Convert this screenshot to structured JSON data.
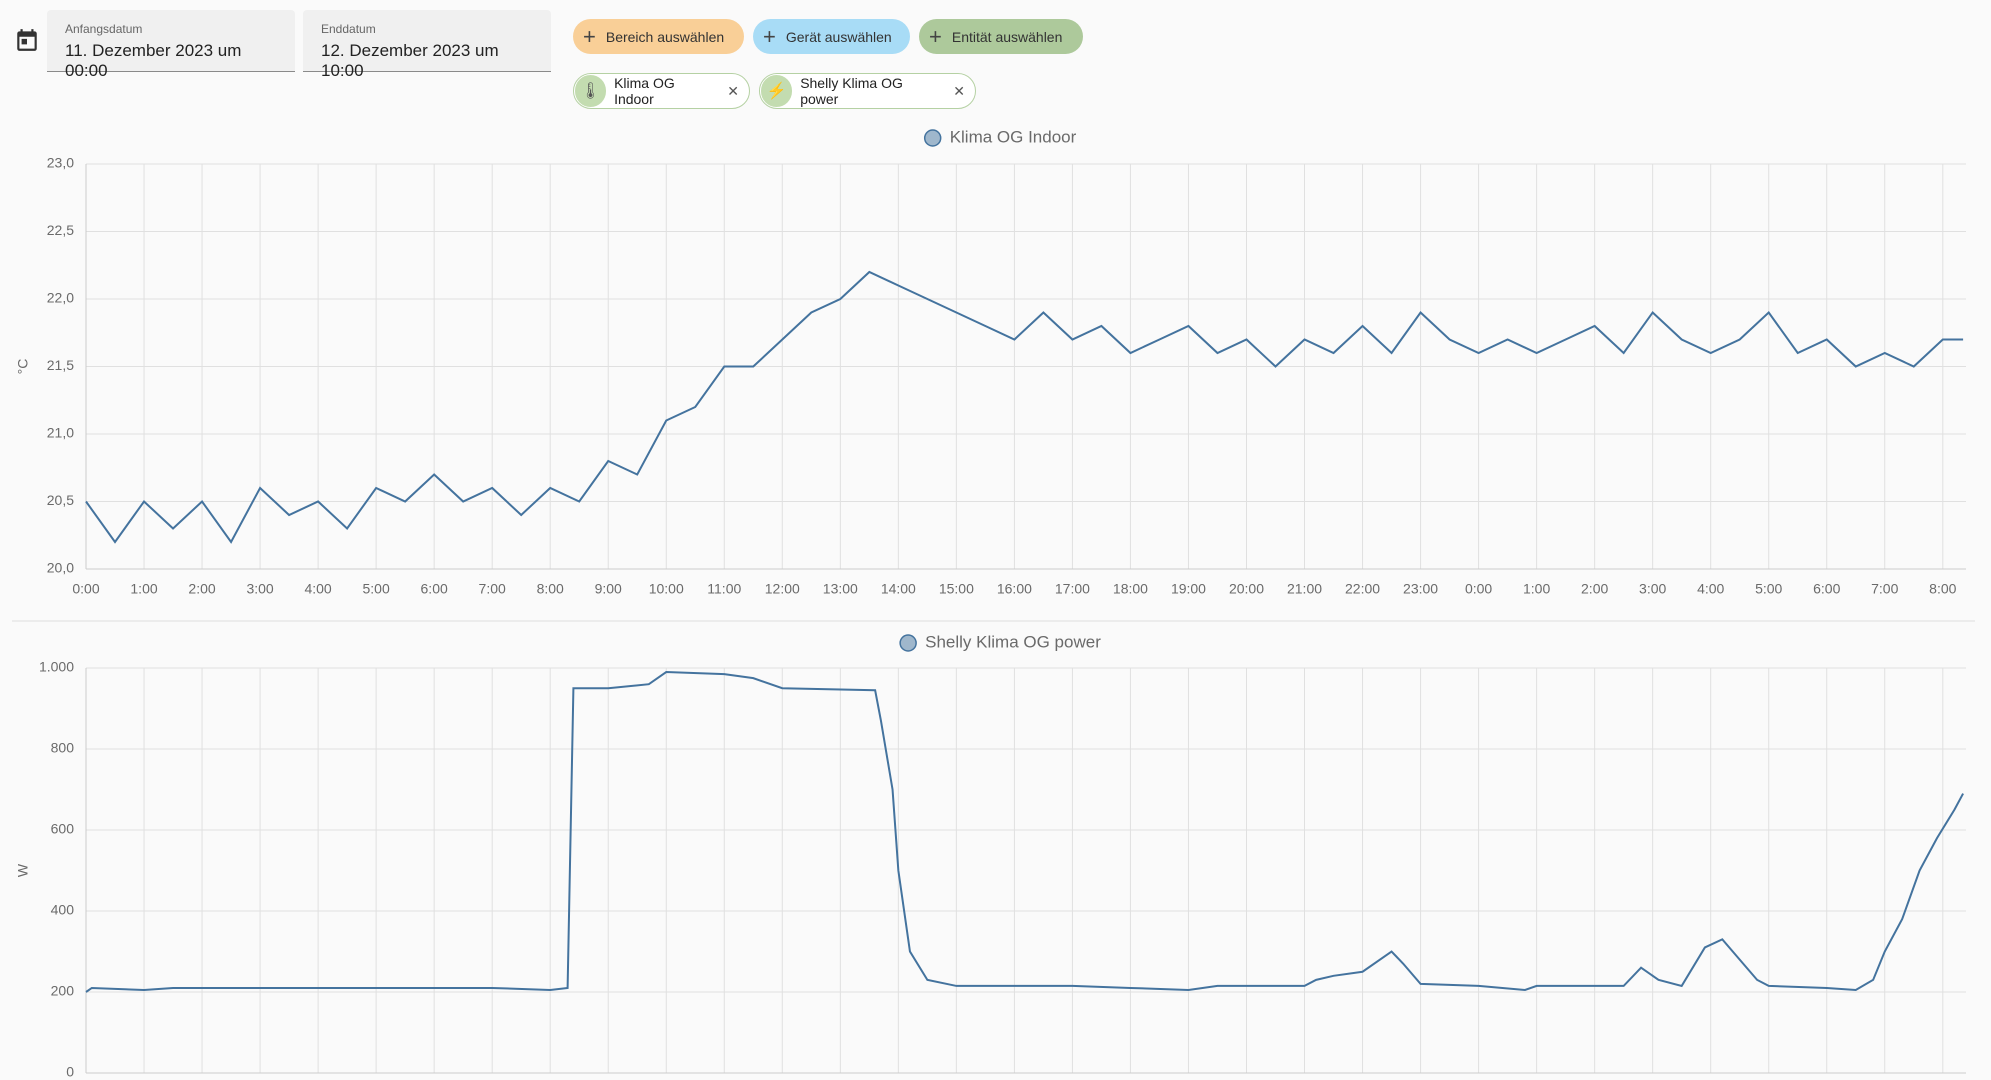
{
  "header": {
    "start_label": "Anfangsdatum",
    "start_value": "11. Dezember 2023 um 00:00",
    "end_label": "Enddatum",
    "end_value": "12. Dezember 2023 um 10:00",
    "buttons": [
      "Bereich auswählen",
      "Gerät auswählen",
      "Entität auswählen"
    ],
    "chips": [
      "Klima OG Indoor",
      "Shelly Klima OG power"
    ]
  },
  "chart_data": [
    {
      "type": "line",
      "ylabel": "°C",
      "grid": true,
      "xlim": [
        0,
        32.4
      ],
      "ylim": [
        20,
        23
      ],
      "yticks": [
        {
          "value": 20,
          "label": "20,0"
        },
        {
          "value": 20.5,
          "label": "20,5"
        },
        {
          "value": 21,
          "label": "21,0"
        },
        {
          "value": 21.5,
          "label": "21,5"
        },
        {
          "value": 22,
          "label": "22,0"
        },
        {
          "value": 22.5,
          "label": "22,5"
        },
        {
          "value": 23,
          "label": "23,0"
        }
      ],
      "xticks": [
        {
          "value": 0,
          "label": "0:00"
        },
        {
          "value": 1,
          "label": "1:00"
        },
        {
          "value": 2,
          "label": "2:00"
        },
        {
          "value": 3,
          "label": "3:00"
        },
        {
          "value": 4,
          "label": "4:00"
        },
        {
          "value": 5,
          "label": "5:00"
        },
        {
          "value": 6,
          "label": "6:00"
        },
        {
          "value": 7,
          "label": "7:00"
        },
        {
          "value": 8,
          "label": "8:00"
        },
        {
          "value": 9,
          "label": "9:00"
        },
        {
          "value": 10,
          "label": "10:00"
        },
        {
          "value": 11,
          "label": "11:00"
        },
        {
          "value": 12,
          "label": "12:00"
        },
        {
          "value": 13,
          "label": "13:00"
        },
        {
          "value": 14,
          "label": "14:00"
        },
        {
          "value": 15,
          "label": "15:00"
        },
        {
          "value": 16,
          "label": "16:00"
        },
        {
          "value": 17,
          "label": "17:00"
        },
        {
          "value": 18,
          "label": "18:00"
        },
        {
          "value": 19,
          "label": "19:00"
        },
        {
          "value": 20,
          "label": "20:00"
        },
        {
          "value": 21,
          "label": "21:00"
        },
        {
          "value": 22,
          "label": "22:00"
        },
        {
          "value": 23,
          "label": "23:00"
        },
        {
          "value": 24,
          "label": "0:00"
        },
        {
          "value": 25,
          "label": "1:00"
        },
        {
          "value": 26,
          "label": "2:00"
        },
        {
          "value": 27,
          "label": "3:00"
        },
        {
          "value": 28,
          "label": "4:00"
        },
        {
          "value": 29,
          "label": "5:00"
        },
        {
          "value": 30,
          "label": "6:00"
        },
        {
          "value": 31,
          "label": "7:00"
        },
        {
          "value": 32,
          "label": "8:00"
        }
      ],
      "x": [
        0,
        0.5,
        1,
        1.5,
        2,
        2.5,
        3,
        3.5,
        4,
        4.5,
        5,
        5.5,
        6,
        6.5,
        7,
        7.5,
        8,
        8.5,
        9,
        9.5,
        10,
        10.5,
        11,
        11.5,
        12,
        12.5,
        13,
        13.5,
        14,
        14.5,
        15,
        15.5,
        16,
        16.5,
        17,
        17.5,
        18,
        18.5,
        19,
        19.5,
        20,
        20.5,
        21,
        21.5,
        22,
        22.5,
        23,
        23.5,
        24,
        24.5,
        25,
        25.5,
        26,
        26.5,
        27,
        27.5,
        28,
        28.5,
        29,
        29.5,
        30,
        30.5,
        31,
        31.5,
        32,
        32.35
      ],
      "series": [
        {
          "name": "Klima OG Indoor",
          "color": "#44739e",
          "values": [
            20.5,
            20.2,
            20.5,
            20.3,
            20.5,
            20.2,
            20.6,
            20.4,
            20.5,
            20.3,
            20.6,
            20.5,
            20.7,
            20.5,
            20.6,
            20.4,
            20.6,
            20.5,
            20.8,
            20.7,
            21.1,
            21.2,
            21.5,
            21.5,
            21.7,
            21.9,
            22.0,
            22.2,
            22.1,
            22.0,
            21.9,
            21.8,
            21.7,
            21.9,
            21.7,
            21.8,
            21.6,
            21.7,
            21.8,
            21.6,
            21.7,
            21.5,
            21.7,
            21.6,
            21.8,
            21.6,
            21.9,
            21.7,
            21.6,
            21.7,
            21.6,
            21.7,
            21.8,
            21.6,
            21.9,
            21.7,
            21.6,
            21.7,
            21.9,
            21.6,
            21.7,
            21.5,
            21.6,
            21.5,
            21.7,
            21.7
          ]
        }
      ]
    },
    {
      "type": "line",
      "ylabel": "W",
      "grid": true,
      "xlim": [
        0,
        32.4
      ],
      "ylim": [
        0,
        1000
      ],
      "yticks": [
        0,
        200,
        400,
        600,
        800,
        {
          "value": 1000,
          "label": "1.000"
        }
      ],
      "xticks": [
        0,
        1,
        2,
        3,
        4,
        5,
        6,
        7,
        8,
        9,
        10,
        11,
        12,
        13,
        14,
        15,
        16,
        17,
        18,
        19,
        20,
        21,
        22,
        23,
        24,
        25,
        26,
        27,
        28,
        29,
        30,
        31,
        32
      ],
      "x": [
        0,
        0.1,
        1,
        1.5,
        3,
        5,
        7,
        8,
        8.3,
        8.4,
        9,
        9.7,
        10,
        11,
        11.5,
        12,
        13.6,
        13.7,
        13.9,
        14,
        14.2,
        14.5,
        15,
        16,
        17,
        18,
        19,
        19.5,
        20,
        21,
        21.2,
        21.5,
        22,
        22.5,
        22.7,
        23,
        24,
        24.8,
        25,
        26,
        26.5,
        26.8,
        27.1,
        27.5,
        27.9,
        28.2,
        28.5,
        28.8,
        29,
        30,
        30.5,
        30.8,
        31,
        31.3,
        31.6,
        31.9,
        32.2,
        32.35
      ],
      "series": [
        {
          "name": "Shelly Klima OG power",
          "color": "#44739e",
          "values": [
            200,
            210,
            205,
            210,
            210,
            210,
            210,
            205,
            210,
            950,
            950,
            960,
            990,
            985,
            975,
            950,
            945,
            870,
            700,
            500,
            300,
            230,
            215,
            215,
            215,
            210,
            205,
            215,
            215,
            215,
            230,
            240,
            250,
            300,
            270,
            220,
            215,
            205,
            215,
            215,
            215,
            260,
            230,
            215,
            310,
            330,
            280,
            230,
            215,
            210,
            205,
            230,
            300,
            380,
            500,
            580,
            650,
            690
          ]
        }
      ]
    }
  ]
}
